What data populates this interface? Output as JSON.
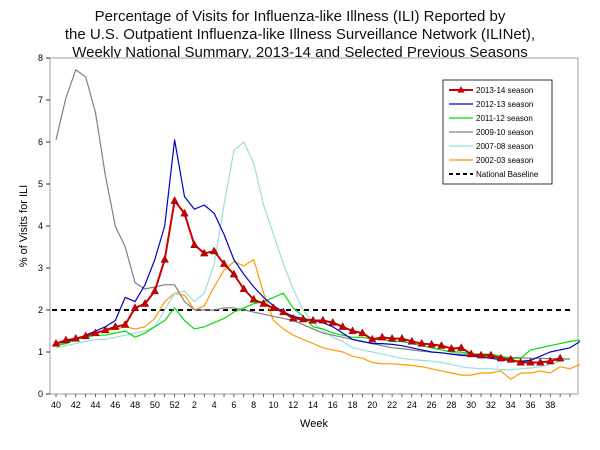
{
  "chart_data": {
    "type": "line",
    "title_lines": [
      "Percentage of Visits for Influenza-like Illness (ILI) Reported by",
      "the U.S. Outpatient Influenza-like Illness Surveillance Network (ILINet),",
      "Weekly National Summary, 2013-14 and Selected Previous Seasons"
    ],
    "xlabel": "Week",
    "ylabel": "% of Visits for ILI",
    "ylim": [
      0,
      8
    ],
    "y_ticks": [
      0,
      1,
      2,
      3,
      4,
      5,
      6,
      7,
      8
    ],
    "x_tick_labels": [
      "40",
      "42",
      "44",
      "46",
      "48",
      "50",
      "52",
      "2",
      "4",
      "6",
      "8",
      "10",
      "12",
      "14",
      "16",
      "18",
      "20",
      "22",
      "24",
      "26",
      "28",
      "30",
      "32",
      "34",
      "36",
      "38"
    ],
    "baseline": {
      "name": "National Baseline",
      "value": 2.0,
      "color": "#000000"
    },
    "series": [
      {
        "name": "2013-14 season",
        "color": "#cc0000",
        "marker": "triangle",
        "width": 2,
        "values": [
          1.2,
          1.28,
          1.32,
          1.38,
          1.45,
          1.52,
          1.6,
          1.65,
          2.05,
          2.15,
          2.45,
          3.2,
          4.6,
          4.3,
          3.55,
          3.35,
          3.4,
          3.1,
          2.85,
          2.5,
          2.25,
          2.15,
          2.05,
          1.95,
          1.8,
          1.78,
          1.75,
          1.75,
          1.7,
          1.6,
          1.5,
          1.45,
          1.3,
          1.35,
          1.32,
          1.32,
          1.25,
          1.2,
          1.18,
          1.15,
          1.08,
          1.1,
          0.95,
          0.92,
          0.92,
          0.85,
          0.82,
          0.75,
          0.75,
          0.75,
          0.78,
          0.85
        ]
      },
      {
        "name": "2012-13 season",
        "color": "#0000cc",
        "width": 1.2,
        "values": [
          1.2,
          1.25,
          1.3,
          1.4,
          1.5,
          1.6,
          1.75,
          2.3,
          2.2,
          2.6,
          3.2,
          4.0,
          6.05,
          4.7,
          4.4,
          4.5,
          4.3,
          3.8,
          3.2,
          2.85,
          2.55,
          2.3,
          2.1,
          1.95,
          1.85,
          1.8,
          1.75,
          1.7,
          1.6,
          1.45,
          1.3,
          1.25,
          1.2,
          1.2,
          1.18,
          1.15,
          1.1,
          1.05,
          1.0,
          0.98,
          0.95,
          0.92,
          0.9,
          0.88,
          0.85,
          0.82,
          0.8,
          0.78,
          0.8,
          0.9,
          1.0,
          1.05,
          1.1,
          1.25
        ]
      },
      {
        "name": "2011-12 season",
        "color": "#00dd00",
        "width": 1.2,
        "values": [
          1.15,
          1.2,
          1.3,
          1.35,
          1.4,
          1.4,
          1.45,
          1.5,
          1.35,
          1.45,
          1.6,
          1.75,
          2.05,
          1.75,
          1.55,
          1.6,
          1.7,
          1.8,
          1.95,
          2.05,
          2.15,
          2.2,
          2.3,
          2.4,
          2.05,
          1.85,
          1.6,
          1.55,
          1.45,
          1.4,
          1.35,
          1.35,
          1.3,
          1.3,
          1.25,
          1.25,
          1.2,
          1.15,
          1.1,
          1.05,
          1.0,
          1.0,
          0.95,
          0.95,
          0.95,
          0.9,
          0.85,
          0.85,
          1.05,
          1.1,
          1.15,
          1.2,
          1.25,
          1.28
        ]
      },
      {
        "name": "2009-10 season",
        "color": "#808080",
        "width": 1.2,
        "values": [
          6.05,
          7.05,
          7.72,
          7.55,
          6.7,
          5.2,
          4.0,
          3.5,
          2.65,
          2.5,
          2.55,
          2.6,
          2.6,
          2.2,
          2.0,
          2.0,
          2.0,
          2.05,
          2.05,
          2.0,
          1.95,
          1.9,
          1.85,
          1.8,
          1.75,
          1.65,
          1.55,
          1.45,
          1.4,
          1.35,
          1.3,
          1.25,
          1.2,
          1.15,
          1.1,
          1.08,
          1.05,
          1.02,
          1.0,
          0.98,
          0.95,
          0.95,
          0.93,
          0.9,
          0.9,
          0.88,
          0.87,
          0.86,
          0.85,
          0.85,
          0.84,
          0.84,
          0.83
        ]
      },
      {
        "name": "2007-08 season",
        "color": "#99dddd",
        "width": 1.2,
        "values": [
          1.1,
          1.15,
          1.2,
          1.25,
          1.3,
          1.3,
          1.35,
          1.4,
          1.45,
          1.5,
          1.6,
          2.0,
          2.4,
          2.45,
          2.2,
          2.4,
          3.1,
          4.5,
          5.8,
          6.0,
          5.5,
          4.5,
          3.8,
          3.1,
          2.5,
          2.0,
          1.7,
          1.5,
          1.35,
          1.25,
          1.1,
          1.05,
          1.0,
          0.95,
          0.9,
          0.85,
          0.82,
          0.8,
          0.78,
          0.75,
          0.7,
          0.65,
          0.62,
          0.6,
          0.6,
          0.58,
          0.58,
          0.6,
          0.62,
          0.65,
          0.7,
          0.78,
          0.85
        ]
      },
      {
        "name": "2002-03 season",
        "color": "#ff9900",
        "width": 1.2,
        "values": [
          1.15,
          1.25,
          1.3,
          1.4,
          1.45,
          1.5,
          1.55,
          1.6,
          1.55,
          1.6,
          1.8,
          2.2,
          2.4,
          2.35,
          2.0,
          2.1,
          2.55,
          2.95,
          3.15,
          3.05,
          3.2,
          2.4,
          1.75,
          1.55,
          1.4,
          1.3,
          1.2,
          1.1,
          1.05,
          1.0,
          0.9,
          0.85,
          0.75,
          0.72,
          0.72,
          0.7,
          0.68,
          0.65,
          0.6,
          0.55,
          0.5,
          0.45,
          0.45,
          0.5,
          0.5,
          0.55,
          0.35,
          0.5,
          0.5,
          0.55,
          0.5,
          0.65,
          0.6,
          0.7
        ]
      }
    ],
    "legend_position": "top-right"
  }
}
